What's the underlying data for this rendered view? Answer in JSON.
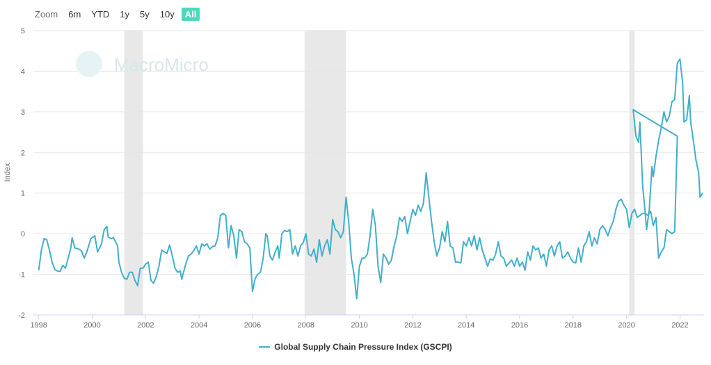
{
  "toolbar": {
    "zoom_label": "Zoom",
    "buttons": [
      "6m",
      "YTD",
      "1y",
      "5y",
      "10y",
      "All"
    ],
    "active": "All"
  },
  "watermark": {
    "text": "MacroMicro"
  },
  "colors": {
    "series": "#41aecb",
    "recession": "#e8e8e8",
    "active_button": "#4dd8bd"
  },
  "chart_data": {
    "type": "line",
    "title": "",
    "xlabel": "",
    "ylabel": "Index",
    "xlim": [
      1998,
      2022.9
    ],
    "ylim": [
      -2,
      5
    ],
    "x_ticks": [
      "1998",
      "2000",
      "2002",
      "2004",
      "2006",
      "2008",
      "2010",
      "2012",
      "2014",
      "2016",
      "2018",
      "2020",
      "2022"
    ],
    "y_ticks": [
      "-2",
      "-1",
      "0",
      "1",
      "2",
      "3",
      "4",
      "5"
    ],
    "grid": true,
    "legend_position": "bottom-center",
    "shaded_periods": [
      [
        2001.2,
        2001.9
      ],
      [
        2007.95,
        2009.5
      ],
      [
        2020.1,
        2020.3
      ]
    ],
    "series": [
      {
        "name": "Global Supply Chain Pressure Index (GSCPI)",
        "points": [
          [
            1998.0,
            -0.9
          ],
          [
            1998.1,
            -0.4
          ],
          [
            1998.2,
            -0.12
          ],
          [
            1998.3,
            -0.15
          ],
          [
            1998.4,
            -0.4
          ],
          [
            1998.5,
            -0.7
          ],
          [
            1998.6,
            -0.88
          ],
          [
            1998.7,
            -0.92
          ],
          [
            1998.8,
            -0.93
          ],
          [
            1998.9,
            -0.78
          ],
          [
            1999.0,
            -0.85
          ],
          [
            1999.1,
            -0.6
          ],
          [
            1999.2,
            -0.35
          ],
          [
            1999.25,
            -0.1
          ],
          [
            1999.35,
            -0.35
          ],
          [
            1999.5,
            -0.38
          ],
          [
            1999.6,
            -0.42
          ],
          [
            1999.7,
            -0.6
          ],
          [
            1999.8,
            -0.45
          ],
          [
            1999.95,
            -0.12
          ],
          [
            2000.1,
            -0.05
          ],
          [
            2000.2,
            -0.45
          ],
          [
            2000.35,
            -0.25
          ],
          [
            2000.45,
            0.1
          ],
          [
            2000.55,
            0.18
          ],
          [
            2000.6,
            -0.08
          ],
          [
            2000.7,
            -0.12
          ],
          [
            2000.8,
            -0.1
          ],
          [
            2000.95,
            -0.3
          ],
          [
            2001.0,
            -0.7
          ],
          [
            2001.1,
            -0.95
          ],
          [
            2001.2,
            -1.1
          ],
          [
            2001.3,
            -1.12
          ],
          [
            2001.4,
            -0.95
          ],
          [
            2001.5,
            -0.95
          ],
          [
            2001.6,
            -1.15
          ],
          [
            2001.7,
            -1.28
          ],
          [
            2001.8,
            -0.85
          ],
          [
            2001.9,
            -0.85
          ],
          [
            2002.0,
            -0.75
          ],
          [
            2002.1,
            -0.7
          ],
          [
            2002.2,
            -1.15
          ],
          [
            2002.3,
            -1.22
          ],
          [
            2002.4,
            -1.05
          ],
          [
            2002.5,
            -0.8
          ],
          [
            2002.6,
            -0.4
          ],
          [
            2002.7,
            -0.45
          ],
          [
            2002.8,
            -0.48
          ],
          [
            2002.9,
            -0.28
          ],
          [
            2003.0,
            -0.55
          ],
          [
            2003.1,
            -0.85
          ],
          [
            2003.2,
            -0.95
          ],
          [
            2003.3,
            -0.92
          ],
          [
            2003.35,
            -1.12
          ],
          [
            2003.5,
            -0.75
          ],
          [
            2003.6,
            -0.55
          ],
          [
            2003.7,
            -0.5
          ],
          [
            2003.8,
            -0.42
          ],
          [
            2003.9,
            -0.3
          ],
          [
            2004.0,
            -0.5
          ],
          [
            2004.1,
            -0.25
          ],
          [
            2004.2,
            -0.3
          ],
          [
            2004.3,
            -0.25
          ],
          [
            2004.4,
            -0.38
          ],
          [
            2004.5,
            -0.32
          ],
          [
            2004.6,
            -0.3
          ],
          [
            2004.7,
            -0.1
          ],
          [
            2004.8,
            0.45
          ],
          [
            2004.9,
            0.5
          ],
          [
            2005.0,
            0.45
          ],
          [
            2005.1,
            -0.35
          ],
          [
            2005.2,
            0.2
          ],
          [
            2005.3,
            -0.05
          ],
          [
            2005.4,
            -0.6
          ],
          [
            2005.5,
            0.1
          ],
          [
            2005.6,
            0.05
          ],
          [
            2005.7,
            -0.2
          ],
          [
            2005.8,
            -0.25
          ],
          [
            2005.9,
            -0.35
          ],
          [
            2006.0,
            -1.42
          ],
          [
            2006.1,
            -1.1
          ],
          [
            2006.2,
            -1.0
          ],
          [
            2006.3,
            -0.95
          ],
          [
            2006.4,
            -0.6
          ],
          [
            2006.5,
            0.0
          ],
          [
            2006.55,
            -0.05
          ],
          [
            2006.65,
            -0.55
          ],
          [
            2006.75,
            -0.65
          ],
          [
            2006.85,
            -0.45
          ],
          [
            2006.95,
            -0.3
          ],
          [
            2007.0,
            -0.6
          ],
          [
            2007.1,
            0.0
          ],
          [
            2007.2,
            0.08
          ],
          [
            2007.3,
            0.05
          ],
          [
            2007.4,
            0.1
          ],
          [
            2007.5,
            -0.5
          ],
          [
            2007.6,
            -0.3
          ],
          [
            2007.7,
            -0.55
          ],
          [
            2007.8,
            -0.3
          ],
          [
            2007.9,
            -0.22
          ],
          [
            2008.0,
            0.0
          ],
          [
            2008.1,
            -0.5
          ],
          [
            2008.2,
            -0.55
          ],
          [
            2008.3,
            -0.38
          ],
          [
            2008.4,
            -0.7
          ],
          [
            2008.5,
            -0.15
          ],
          [
            2008.6,
            -0.55
          ],
          [
            2008.7,
            -0.3
          ],
          [
            2008.8,
            -0.15
          ],
          [
            2008.9,
            -0.5
          ],
          [
            2009.0,
            0.35
          ],
          [
            2009.1,
            0.1
          ],
          [
            2009.2,
            0.05
          ],
          [
            2009.3,
            -0.1
          ],
          [
            2009.4,
            0.05
          ],
          [
            2009.5,
            0.9
          ],
          [
            2009.6,
            0.3
          ],
          [
            2009.7,
            -0.6
          ],
          [
            2009.8,
            -1.0
          ],
          [
            2009.9,
            -1.6
          ],
          [
            2010.0,
            -0.8
          ],
          [
            2010.1,
            -0.6
          ],
          [
            2010.2,
            -0.6
          ],
          [
            2010.3,
            -0.5
          ],
          [
            2010.4,
            -0.05
          ],
          [
            2010.5,
            0.6
          ],
          [
            2010.6,
            0.2
          ],
          [
            2010.7,
            -0.8
          ],
          [
            2010.8,
            -1.2
          ],
          [
            2010.9,
            -0.5
          ],
          [
            2011.0,
            -0.6
          ],
          [
            2011.1,
            -0.75
          ],
          [
            2011.2,
            -0.65
          ],
          [
            2011.3,
            -0.3
          ],
          [
            2011.4,
            -0.05
          ],
          [
            2011.5,
            0.4
          ],
          [
            2011.6,
            0.3
          ],
          [
            2011.7,
            0.42
          ],
          [
            2011.8,
            0.0
          ],
          [
            2011.9,
            0.3
          ],
          [
            2012.0,
            0.6
          ],
          [
            2012.1,
            0.45
          ],
          [
            2012.2,
            0.7
          ],
          [
            2012.3,
            0.55
          ],
          [
            2012.4,
            0.75
          ],
          [
            2012.5,
            1.5
          ],
          [
            2012.6,
            0.9
          ],
          [
            2012.7,
            0.3
          ],
          [
            2012.8,
            -0.2
          ],
          [
            2012.9,
            -0.55
          ],
          [
            2013.0,
            -0.35
          ],
          [
            2013.1,
            0.05
          ],
          [
            2013.2,
            -0.2
          ],
          [
            2013.3,
            0.3
          ],
          [
            2013.4,
            -0.3
          ],
          [
            2013.5,
            -0.35
          ],
          [
            2013.6,
            -0.7
          ],
          [
            2013.7,
            -0.7
          ],
          [
            2013.8,
            -0.72
          ],
          [
            2013.9,
            -0.2
          ],
          [
            2014.0,
            -0.3
          ],
          [
            2014.1,
            -0.1
          ],
          [
            2014.2,
            -0.3
          ],
          [
            2014.3,
            -0.05
          ],
          [
            2014.4,
            -0.4
          ],
          [
            2014.5,
            -0.1
          ],
          [
            2014.6,
            -0.4
          ],
          [
            2014.7,
            -0.6
          ],
          [
            2014.8,
            -0.8
          ],
          [
            2014.9,
            -0.62
          ],
          [
            2015.0,
            -0.65
          ],
          [
            2015.1,
            -0.5
          ],
          [
            2015.2,
            -0.2
          ],
          [
            2015.3,
            -0.55
          ],
          [
            2015.4,
            -0.6
          ],
          [
            2015.5,
            -0.8
          ],
          [
            2015.6,
            -0.72
          ],
          [
            2015.7,
            -0.65
          ],
          [
            2015.8,
            -0.8
          ],
          [
            2015.9,
            -0.6
          ],
          [
            2016.0,
            -0.8
          ],
          [
            2016.1,
            -0.7
          ],
          [
            2016.2,
            -0.9
          ],
          [
            2016.3,
            -0.45
          ],
          [
            2016.4,
            -0.65
          ],
          [
            2016.5,
            -0.3
          ],
          [
            2016.6,
            -0.4
          ],
          [
            2016.7,
            -0.35
          ],
          [
            2016.8,
            -0.6
          ],
          [
            2016.9,
            -0.5
          ],
          [
            2017.0,
            -0.8
          ],
          [
            2017.1,
            -0.4
          ],
          [
            2017.2,
            -0.3
          ],
          [
            2017.3,
            -0.55
          ],
          [
            2017.4,
            -0.3
          ],
          [
            2017.5,
            -0.2
          ],
          [
            2017.6,
            -0.6
          ],
          [
            2017.7,
            -0.55
          ],
          [
            2017.8,
            -0.45
          ],
          [
            2017.9,
            -0.6
          ],
          [
            2018.0,
            -0.7
          ],
          [
            2018.1,
            -0.72
          ],
          [
            2018.2,
            -0.35
          ],
          [
            2018.3,
            -0.7
          ],
          [
            2018.4,
            -0.3
          ],
          [
            2018.5,
            -0.2
          ],
          [
            2018.6,
            0.05
          ],
          [
            2018.7,
            -0.3
          ],
          [
            2018.8,
            -0.1
          ],
          [
            2018.9,
            -0.25
          ],
          [
            2019.0,
            0.1
          ],
          [
            2019.1,
            0.2
          ],
          [
            2019.2,
            0.1
          ],
          [
            2019.3,
            -0.05
          ],
          [
            2019.4,
            0.15
          ],
          [
            2019.5,
            0.3
          ],
          [
            2019.6,
            0.6
          ],
          [
            2019.7,
            0.8
          ],
          [
            2019.8,
            0.85
          ],
          [
            2019.9,
            0.7
          ],
          [
            2020.0,
            0.6
          ],
          [
            2020.1,
            0.15
          ],
          [
            2020.2,
            0.5
          ],
          [
            2020.3,
            0.6
          ],
          [
            2020.4,
            0.4
          ],
          [
            2020.5,
            0.45
          ],
          [
            2020.6,
            0.5
          ],
          [
            2020.7,
            0.5
          ],
          [
            2020.8,
            0.45
          ],
          [
            2020.9,
            0.55
          ],
          [
            2021.0,
            0.2
          ],
          [
            2021.1,
            0.4
          ],
          [
            2021.2,
            -0.6
          ],
          [
            2021.3,
            -0.45
          ],
          [
            2021.4,
            -0.35
          ],
          [
            2021.5,
            0.1
          ],
          [
            2021.6,
            0.05
          ],
          [
            2021.7,
            0.0
          ],
          [
            2021.8,
            0.05
          ],
          [
            2021.9,
            2.4
          ],
          [
            2020.25,
            3.05
          ],
          [
            2020.35,
            2.4
          ],
          [
            2020.45,
            2.25
          ],
          [
            2020.5,
            2.75
          ],
          [
            2020.6,
            1.2
          ],
          [
            2020.7,
            0.5
          ],
          [
            2020.75,
            0.1
          ],
          [
            2020.85,
            0.6
          ],
          [
            2020.95,
            1.65
          ],
          [
            2021.0,
            1.4
          ],
          [
            2021.1,
            1.9
          ],
          [
            2021.2,
            2.3
          ],
          [
            2021.3,
            2.6
          ],
          [
            2021.4,
            3.0
          ],
          [
            2021.5,
            2.75
          ],
          [
            2021.6,
            2.9
          ],
          [
            2021.7,
            3.25
          ],
          [
            2021.8,
            3.3
          ],
          [
            2021.9,
            4.2
          ],
          [
            2022.0,
            4.3
          ],
          [
            2022.1,
            3.7
          ],
          [
            2022.15,
            2.75
          ],
          [
            2022.25,
            2.8
          ],
          [
            2022.35,
            3.4
          ],
          [
            2022.4,
            2.75
          ],
          [
            2022.5,
            2.3
          ],
          [
            2022.6,
            1.8
          ],
          [
            2022.7,
            1.5
          ],
          [
            2022.75,
            0.9
          ],
          [
            2022.85,
            1.0
          ]
        ]
      }
    ]
  },
  "legend": {
    "label": "Global Supply Chain Pressure Index (GSCPI)"
  }
}
